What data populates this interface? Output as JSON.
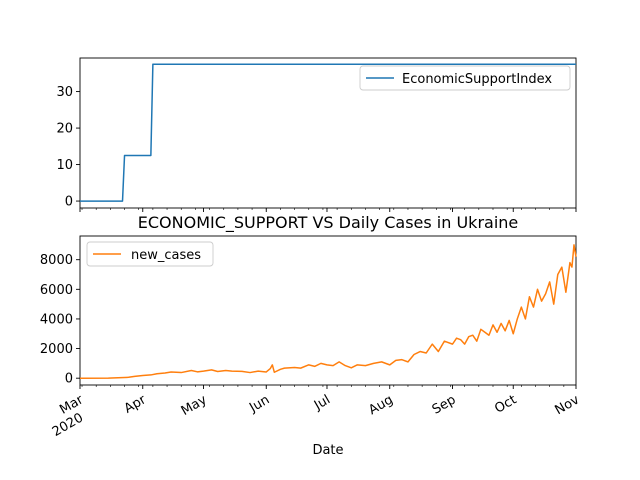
{
  "chart_data": [
    {
      "type": "line",
      "title": "",
      "xlabel": "",
      "ylabel": "",
      "xlim": [
        "2020-03-01",
        "2020-11-01"
      ],
      "ylim": [
        -1.9,
        39.2
      ],
      "yticks": [
        0,
        10,
        20,
        30
      ],
      "grid": false,
      "legend_position": "top-right",
      "series": [
        {
          "name": "EconomicSupportIndex",
          "color": "#1f77b4",
          "x": [
            "2020-03-01",
            "2020-03-22",
            "2020-03-23",
            "2020-04-05",
            "2020-04-06",
            "2020-11-01"
          ],
          "y": [
            0,
            0,
            12.5,
            12.5,
            37.5,
            37.5
          ]
        }
      ]
    },
    {
      "type": "line",
      "title": "ECONOMIC_SUPPORT VS Daily Cases in Ukraine",
      "xlabel": "Date",
      "ylabel": "",
      "xlim": [
        "2020-03-01",
        "2020-11-01"
      ],
      "ylim": [
        -460,
        9600
      ],
      "yticks": [
        0,
        2000,
        4000,
        6000,
        8000
      ],
      "xticks": [
        {
          "date": "2020-03-01",
          "label": "Mar",
          "sublabel": "2020"
        },
        {
          "date": "2020-04-01",
          "label": "Apr"
        },
        {
          "date": "2020-05-01",
          "label": "May"
        },
        {
          "date": "2020-06-01",
          "label": "Jun"
        },
        {
          "date": "2020-07-01",
          "label": "Jul"
        },
        {
          "date": "2020-08-01",
          "label": "Aug"
        },
        {
          "date": "2020-09-01",
          "label": "Sep"
        },
        {
          "date": "2020-10-01",
          "label": "Oct"
        },
        {
          "date": "2020-11-01",
          "label": "Nov"
        }
      ],
      "grid": false,
      "legend_position": "top-left",
      "series": [
        {
          "name": "new_cases",
          "color": "#ff7f0e",
          "x": [
            "2020-03-01",
            "2020-03-15",
            "2020-03-25",
            "2020-03-28",
            "2020-04-01",
            "2020-04-05",
            "2020-04-08",
            "2020-04-12",
            "2020-04-15",
            "2020-04-20",
            "2020-04-25",
            "2020-04-28",
            "2020-05-01",
            "2020-05-05",
            "2020-05-08",
            "2020-05-12",
            "2020-05-15",
            "2020-05-20",
            "2020-05-24",
            "2020-05-28",
            "2020-06-01",
            "2020-06-03",
            "2020-06-04",
            "2020-06-05",
            "2020-06-08",
            "2020-06-10",
            "2020-06-15",
            "2020-06-18",
            "2020-06-22",
            "2020-06-25",
            "2020-06-28",
            "2020-07-01",
            "2020-07-04",
            "2020-07-07",
            "2020-07-10",
            "2020-07-13",
            "2020-07-16",
            "2020-07-20",
            "2020-07-24",
            "2020-07-28",
            "2020-08-01",
            "2020-08-04",
            "2020-08-07",
            "2020-08-10",
            "2020-08-13",
            "2020-08-16",
            "2020-08-19",
            "2020-08-22",
            "2020-08-25",
            "2020-08-28",
            "2020-09-01",
            "2020-09-03",
            "2020-09-05",
            "2020-09-07",
            "2020-09-09",
            "2020-09-11",
            "2020-09-13",
            "2020-09-15",
            "2020-09-17",
            "2020-09-19",
            "2020-09-21",
            "2020-09-23",
            "2020-09-25",
            "2020-09-27",
            "2020-09-29",
            "2020-10-01",
            "2020-10-03",
            "2020-10-05",
            "2020-10-07",
            "2020-10-09",
            "2020-10-11",
            "2020-10-13",
            "2020-10-15",
            "2020-10-17",
            "2020-10-19",
            "2020-10-21",
            "2020-10-23",
            "2020-10-25",
            "2020-10-27",
            "2020-10-29",
            "2020-10-30",
            "2020-10-31",
            "2020-11-01"
          ],
          "y": [
            0,
            3,
            60,
            120,
            180,
            220,
            300,
            350,
            420,
            380,
            520,
            430,
            480,
            560,
            450,
            520,
            480,
            460,
            380,
            480,
            420,
            650,
            900,
            400,
            600,
            680,
            720,
            680,
            900,
            800,
            1000,
            900,
            850,
            1100,
            850,
            700,
            900,
            850,
            1000,
            1100,
            900,
            1200,
            1250,
            1100,
            1600,
            1800,
            1700,
            2300,
            1800,
            2500,
            2300,
            2700,
            2600,
            2300,
            2800,
            2900,
            2500,
            3300,
            3100,
            2900,
            3600,
            3100,
            3700,
            3200,
            3900,
            3000,
            4000,
            4800,
            4000,
            5500,
            4800,
            6000,
            5200,
            5700,
            6500,
            5000,
            7000,
            7500,
            5800,
            7800,
            7500,
            9000,
            8200
          ]
        }
      ]
    }
  ]
}
